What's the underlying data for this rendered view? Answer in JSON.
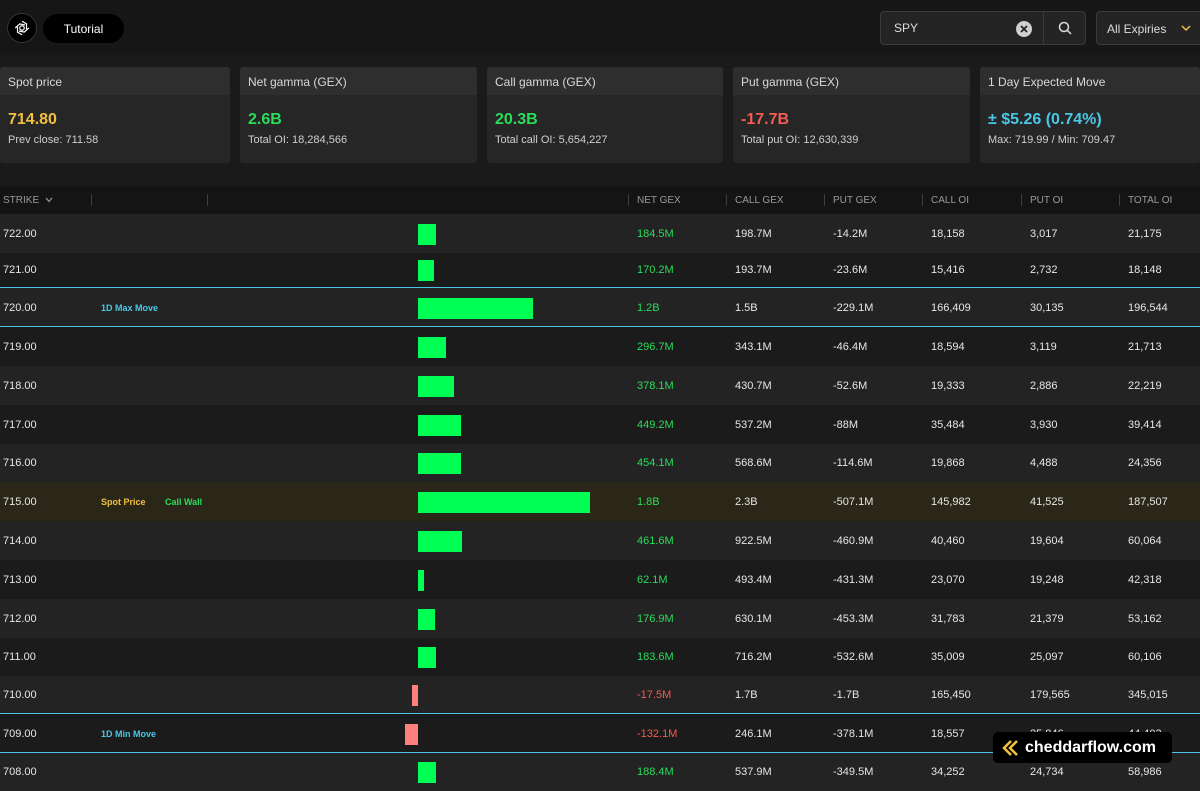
{
  "header": {
    "tutorial_label": "Tutorial",
    "search_value": "SPY",
    "expiry_label": "All Expiries"
  },
  "cards": [
    {
      "title": "Spot price",
      "value": "714.80",
      "sub": "Prev close: 711.58",
      "color": "#f0c040"
    },
    {
      "title": "Net gamma (GEX)",
      "value": "2.6B",
      "sub": "Total OI: 18,284,566",
      "color": "#2bdc5a"
    },
    {
      "title": "Call gamma (GEX)",
      "value": "20.3B",
      "sub": "Total call OI: 5,654,227",
      "color": "#2bdc5a"
    },
    {
      "title": "Put gamma (GEX)",
      "value": "-17.7B",
      "sub": "Total put OI: 12,630,339",
      "color": "#f25c54"
    },
    {
      "title": "1 Day Expected Move",
      "value": "± $5.26 (0.74%)",
      "sub": "Max: 719.99 / Min: 709.47",
      "color": "#4ac7e6"
    }
  ],
  "columns": {
    "strike": "STRIKE",
    "net_gex": "NET GEX",
    "call_gex": "CALL GEX",
    "put_gex": "PUT GEX",
    "call_oi": "CALL OI",
    "put_oi": "PUT OI",
    "total_oi": "TOTAL OI"
  },
  "rows": [
    {
      "strike": "722.00",
      "net": "184.5M",
      "call": "198.7M",
      "put": "-14.2M",
      "coi": "18,158",
      "poi": "3,017",
      "toi": "21,175",
      "gex_value": 184.5
    },
    {
      "strike": "721.00",
      "net": "170.2M",
      "call": "193.7M",
      "put": "-23.6M",
      "coi": "15,416",
      "poi": "2,732",
      "toi": "18,148",
      "gex_value": 170.2
    },
    {
      "strike": "720.00",
      "net": "1.2B",
      "call": "1.5B",
      "put": "-229.1M",
      "coi": "166,409",
      "poi": "30,135",
      "toi": "196,544",
      "gex_value": 1200,
      "tags": [
        "1D Max Move"
      ]
    },
    {
      "strike": "719.00",
      "net": "296.7M",
      "call": "343.1M",
      "put": "-46.4M",
      "coi": "18,594",
      "poi": "3,119",
      "toi": "21,713",
      "gex_value": 296.7
    },
    {
      "strike": "718.00",
      "net": "378.1M",
      "call": "430.7M",
      "put": "-52.6M",
      "coi": "19,333",
      "poi": "2,886",
      "toi": "22,219",
      "gex_value": 378.1
    },
    {
      "strike": "717.00",
      "net": "449.2M",
      "call": "537.2M",
      "put": "-88M",
      "coi": "35,484",
      "poi": "3,930",
      "toi": "39,414",
      "gex_value": 449.2
    },
    {
      "strike": "716.00",
      "net": "454.1M",
      "call": "568.6M",
      "put": "-114.6M",
      "coi": "19,868",
      "poi": "4,488",
      "toi": "24,356",
      "gex_value": 454.1
    },
    {
      "strike": "715.00",
      "net": "1.8B",
      "call": "2.3B",
      "put": "-507.1M",
      "coi": "145,982",
      "poi": "41,525",
      "toi": "187,507",
      "gex_value": 1800,
      "tags": [
        "Spot Price",
        "Call Wall"
      ]
    },
    {
      "strike": "714.00",
      "net": "461.6M",
      "call": "922.5M",
      "put": "-460.9M",
      "coi": "40,460",
      "poi": "19,604",
      "toi": "60,064",
      "gex_value": 461.6
    },
    {
      "strike": "713.00",
      "net": "62.1M",
      "call": "493.4M",
      "put": "-431.3M",
      "coi": "23,070",
      "poi": "19,248",
      "toi": "42,318",
      "gex_value": 62.1
    },
    {
      "strike": "712.00",
      "net": "176.9M",
      "call": "630.1M",
      "put": "-453.3M",
      "coi": "31,783",
      "poi": "21,379",
      "toi": "53,162",
      "gex_value": 176.9
    },
    {
      "strike": "711.00",
      "net": "183.6M",
      "call": "716.2M",
      "put": "-532.6M",
      "coi": "35,009",
      "poi": "25,097",
      "toi": "60,106",
      "gex_value": 183.6
    },
    {
      "strike": "710.00",
      "net": "-17.5M",
      "call": "1.7B",
      "put": "-1.7B",
      "coi": "165,450",
      "poi": "179,565",
      "toi": "345,015",
      "gex_value": -17.5
    },
    {
      "strike": "709.00",
      "net": "-132.1M",
      "call": "246.1M",
      "put": "-378.1M",
      "coi": "18,557",
      "poi": "25,846",
      "toi": "44,403",
      "gex_value": -132.1,
      "tags": [
        "1D Min Move"
      ]
    },
    {
      "strike": "708.00",
      "net": "188.4M",
      "call": "537.9M",
      "put": "-349.5M",
      "coi": "34,252",
      "poi": "24,734",
      "toi": "58,986",
      "gex_value": 188.4
    }
  ],
  "tag_colors": {
    "1D Max Move": "#4ac7e6",
    "1D Min Move": "#4ac7e6",
    "Spot Price": "#f0c040",
    "Call Wall": "#2bdc5a"
  },
  "colors": {
    "positive": "#00ff55",
    "negative": "#ff7f7f",
    "net_positive_text": "#2bdc5a",
    "net_negative_text": "#f25c54",
    "marker_line": "#4ac7e6"
  },
  "watermark": "cheddarflow.com"
}
